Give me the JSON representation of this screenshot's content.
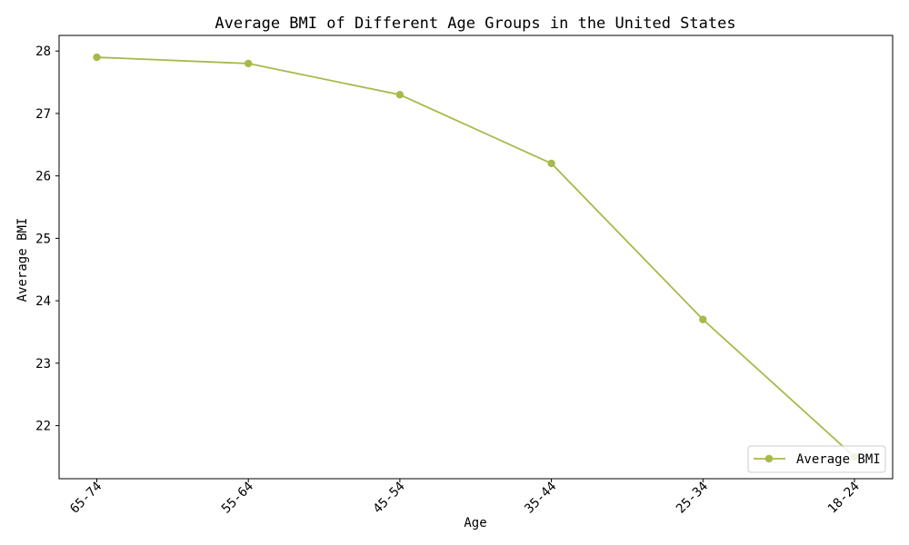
{
  "chart_data": {
    "type": "line",
    "title": "Average BMI of Different Age Groups in the United States",
    "xlabel": "Age",
    "ylabel": "Average BMI",
    "categories": [
      "65-74",
      "55-64",
      "45-54",
      "35-44",
      "25-34",
      "18-24"
    ],
    "series": [
      {
        "name": "Average BMI",
        "values": [
          27.9,
          27.8,
          27.3,
          26.2,
          23.7,
          21.5
        ],
        "color": "#a6b94a",
        "marker": "circle"
      }
    ],
    "yticks": [
      22,
      23,
      24,
      25,
      26,
      27,
      28
    ],
    "ylim": [
      21.15,
      28.25
    ],
    "x_tick_rotation": "45 degrees",
    "grid": false,
    "legend_position": "lower right"
  }
}
